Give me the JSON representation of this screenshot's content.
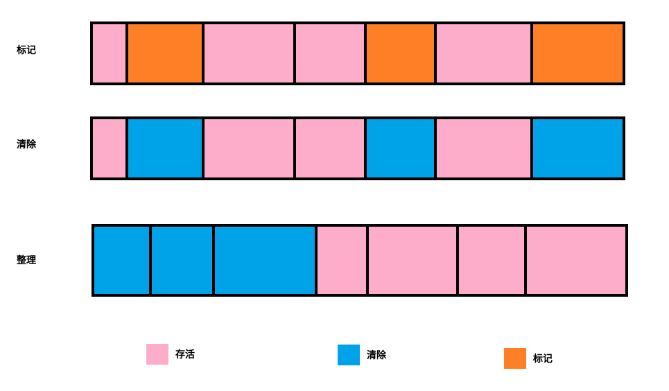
{
  "colors": {
    "live": "#fdadc9",
    "cleared": "#00a2e8",
    "marked": "#ff7f27",
    "border": "#000000"
  },
  "rows": [
    {
      "label": "标记",
      "cells": [
        "live",
        "marked",
        "live",
        "live",
        "marked",
        "live",
        "marked"
      ]
    },
    {
      "label": "清除",
      "cells": [
        "live",
        "cleared",
        "live",
        "live",
        "cleared",
        "live",
        "cleared"
      ]
    },
    {
      "label": "整理",
      "cells": [
        "cleared",
        "cleared",
        "cleared",
        "live",
        "live",
        "live",
        "live"
      ]
    }
  ],
  "legend": [
    {
      "key": "live",
      "label": "存活"
    },
    {
      "key": "cleared",
      "label": "清除"
    },
    {
      "key": "marked",
      "label": "标记"
    }
  ]
}
